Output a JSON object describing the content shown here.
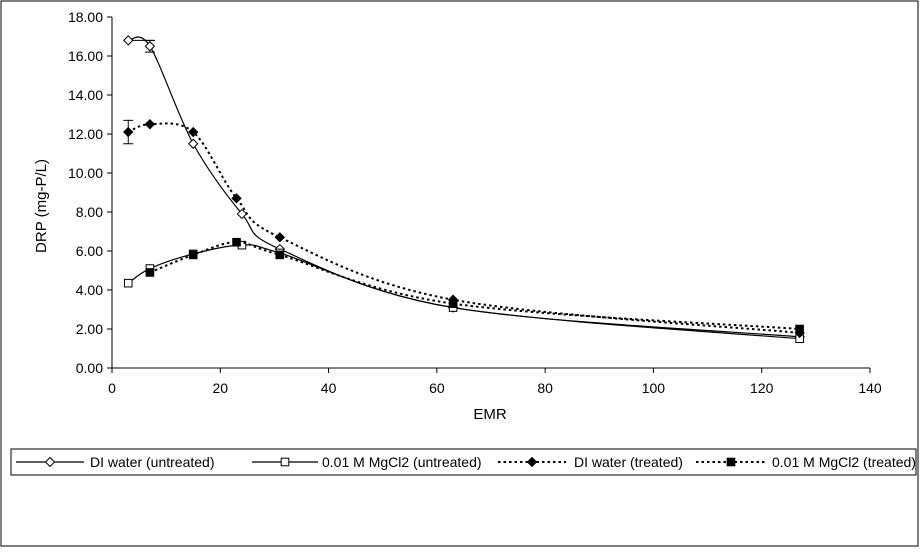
{
  "chart_data": {
    "type": "line",
    "title": "",
    "xlabel": "EMR",
    "ylabel": "DRP (mg-P/L)",
    "xlim": [
      0,
      140
    ],
    "ylim": [
      0,
      18
    ],
    "x_ticks": [
      "0",
      "20",
      "40",
      "60",
      "80",
      "100",
      "120",
      "140"
    ],
    "y_ticks": [
      "0.00",
      "2.00",
      "4.00",
      "6.00",
      "8.00",
      "10.00",
      "12.00",
      "14.00",
      "16.00",
      "18.00"
    ],
    "grid": false,
    "legend_position": "bottom",
    "series": [
      {
        "name": "DI water (untreated)",
        "marker": "diamond-open",
        "line": "solid",
        "color": "#000000",
        "x": [
          3,
          7,
          15,
          24,
          31,
          63,
          127
        ],
        "y": [
          16.8,
          16.5,
          11.5,
          7.9,
          6.1,
          3.1,
          1.6
        ]
      },
      {
        "name": "0.01 M MgCl2 (untreated)",
        "marker": "square-open",
        "line": "solid",
        "color": "#000000",
        "x": [
          3,
          7,
          15,
          24,
          31,
          63,
          127
        ],
        "y": [
          4.35,
          5.1,
          5.85,
          6.3,
          5.9,
          3.1,
          1.5
        ]
      },
      {
        "name": "DI water (treated)",
        "marker": "diamond-filled",
        "line": "dotted",
        "color": "#000000",
        "x": [
          3,
          7,
          15,
          23,
          31,
          63,
          127
        ],
        "y": [
          12.1,
          12.5,
          12.1,
          8.7,
          6.7,
          3.5,
          1.8
        ]
      },
      {
        "name": "0.01 M MgCl2 (treated)",
        "marker": "square-filled",
        "line": "dotted",
        "color": "#000000",
        "x": [
          7,
          15,
          23,
          31,
          63,
          127
        ],
        "y": [
          4.9,
          5.8,
          6.45,
          5.8,
          3.3,
          2.0
        ]
      }
    ]
  }
}
